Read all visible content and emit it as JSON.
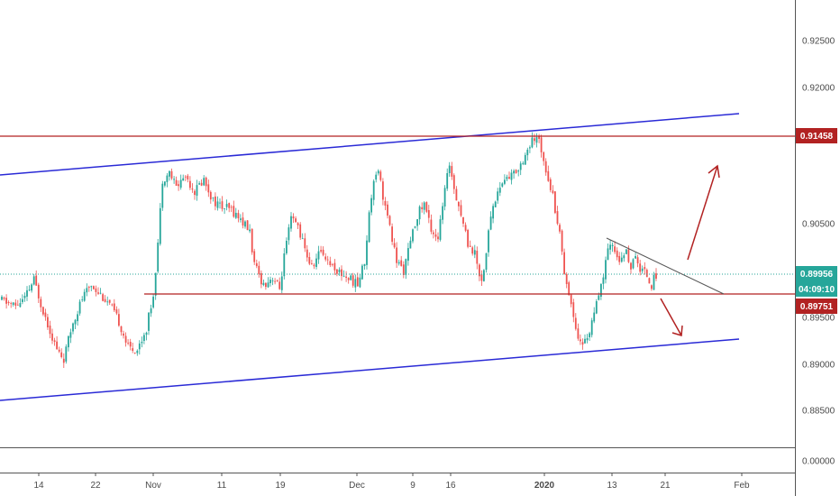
{
  "chart_data": {
    "type": "candlestick",
    "title": "",
    "colors": {
      "up": "#26a69a",
      "down": "#ef5350",
      "channel": "#2a2ad6",
      "level": "#b22222",
      "trendline": "#555555",
      "current_price": "#26a69a",
      "arrow": "#b22222"
    },
    "y_axis": {
      "range": [
        -5e-05,
        0.93
      ],
      "tick_labels": [
        "0.92500",
        "0.92000",
        "0.90500",
        "0.90000",
        "0.89500",
        "0.89000",
        "0.88500",
        "0.00000"
      ]
    },
    "x_axis": {
      "tick_labels": [
        "14",
        "22",
        "Nov",
        "11",
        "19",
        "Dec",
        "9",
        "16",
        "2020",
        "13",
        "21",
        "Feb"
      ]
    },
    "price_tags": {
      "resistance": "0.91458",
      "current": "0.89956",
      "countdown": "04:09:10",
      "support": "0.89751"
    },
    "levels": {
      "resistance": 0.91458,
      "support": 0.89751,
      "current": 0.89956
    }
  }
}
